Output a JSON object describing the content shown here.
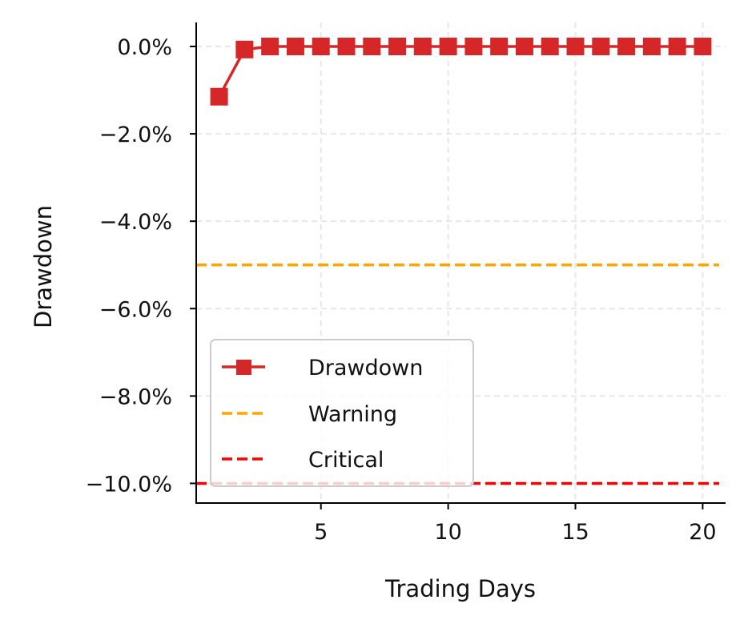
{
  "chart_data": {
    "type": "line",
    "title": "",
    "xlabel": "Trading Days",
    "ylabel": "Drawdown",
    "x": [
      1,
      2,
      3,
      4,
      5,
      6,
      7,
      8,
      9,
      10,
      11,
      12,
      13,
      14,
      15,
      16,
      17,
      18,
      19,
      20
    ],
    "xlim": [
      0.1,
      20.9
    ],
    "ylim": [
      -0.1045,
      0.0055
    ],
    "x_ticks": [
      5,
      10,
      15,
      20
    ],
    "x_tick_labels": [
      "5",
      "10",
      "15",
      "20"
    ],
    "y_ticks": [
      0,
      -0.02,
      -0.04,
      -0.06,
      -0.08,
      -0.1
    ],
    "y_tick_labels": [
      "0.0%",
      "−2.0%",
      "−4.0%",
      "−6.0%",
      "−8.0%",
      "−10.0%"
    ],
    "grid": true,
    "legend_placement": "lower-left",
    "series": [
      {
        "name": "Drawdown",
        "style": "solid",
        "marker": "square",
        "color": "#d62728",
        "values": [
          -0.0115,
          -0.0007,
          0,
          0,
          0,
          0,
          0,
          0,
          0,
          0,
          0,
          0,
          0,
          0,
          0,
          0,
          0,
          0,
          0,
          0
        ]
      }
    ],
    "reference_lines": [
      {
        "name": "Warning",
        "y": -0.05,
        "style": "dashed",
        "color": "#ffa500"
      },
      {
        "name": "Critical",
        "y": -0.1,
        "style": "dashed",
        "color": "#ff0000"
      }
    ]
  }
}
